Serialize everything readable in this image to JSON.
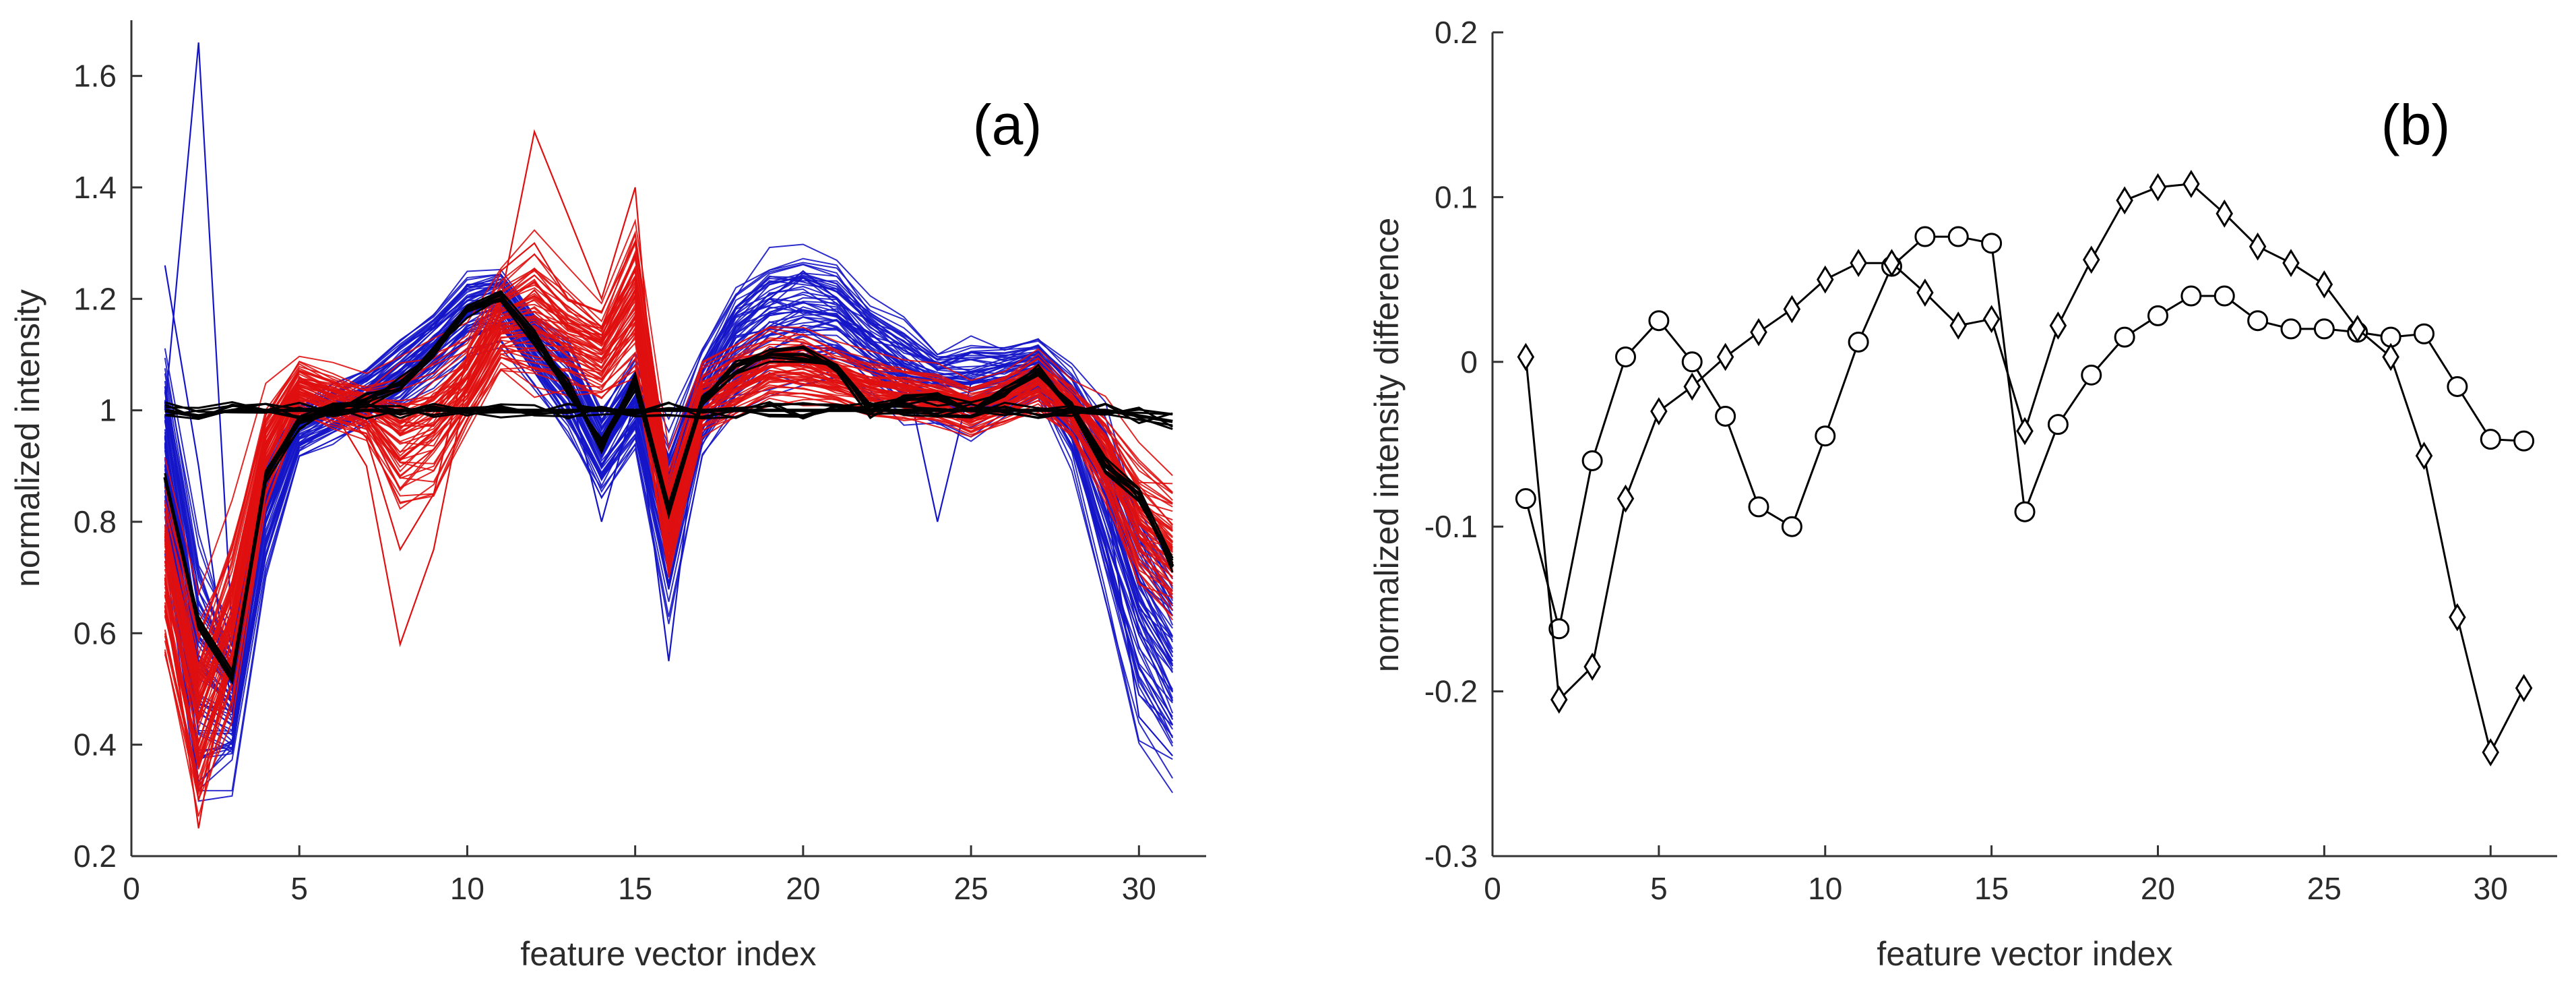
{
  "chart_data": [
    {
      "type": "line",
      "panel_label": "(a)",
      "xlabel": "feature vector index",
      "ylabel": "normalized intensity",
      "xlim": [
        0,
        32
      ],
      "ylim": [
        0.2,
        1.7
      ],
      "xticks": [
        0,
        5,
        10,
        15,
        20,
        25,
        30
      ],
      "xtick_labels": [
        "0",
        "5",
        "10",
        "15",
        "20",
        "25",
        "30"
      ],
      "yticks": [
        0.2,
        0.4,
        0.6,
        0.8,
        1.0,
        1.2,
        1.4,
        1.6
      ],
      "ytick_labels": [
        "0.2",
        "0.4",
        "0.6",
        "0.8",
        "1",
        "1.2",
        "1.4",
        "1.6"
      ],
      "x": [
        1,
        2,
        3,
        4,
        5,
        6,
        7,
        8,
        9,
        10,
        11,
        12,
        13,
        14,
        15,
        16,
        17,
        18,
        19,
        20,
        21,
        22,
        23,
        24,
        25,
        26,
        27,
        28,
        29,
        30,
        31
      ],
      "series_groups": [
        {
          "name": "blue group",
          "color": "#1515c8",
          "count": 60,
          "mean": [
            0.95,
            0.55,
            0.48,
            0.82,
            0.97,
            1.0,
            1.03,
            1.07,
            1.12,
            1.18,
            1.2,
            1.12,
            1.05,
            0.93,
            1.02,
            0.82,
            1.02,
            1.12,
            1.17,
            1.18,
            1.17,
            1.12,
            1.08,
            1.05,
            1.05,
            1.06,
            1.08,
            1.0,
            0.85,
            0.65,
            0.55
          ],
          "spread": [
            0.1,
            0.15,
            0.08,
            0.06,
            0.03,
            0.03,
            0.03,
            0.04,
            0.04,
            0.04,
            0.04,
            0.04,
            0.05,
            0.05,
            0.05,
            0.1,
            0.06,
            0.07,
            0.07,
            0.07,
            0.06,
            0.05,
            0.05,
            0.04,
            0.05,
            0.04,
            0.03,
            0.05,
            0.1,
            0.12,
            0.12
          ],
          "outliers": [
            {
              "values": [
                1.0,
                1.66,
                0.6,
                0.85,
                0.97,
                1.0,
                1.03,
                1.07,
                1.12,
                1.18,
                1.2,
                1.1,
                1.05,
                0.93,
                1.02,
                0.85,
                1.02,
                1.12,
                1.17,
                1.18,
                1.17,
                1.12,
                1.08,
                1.05,
                1.05,
                1.06,
                1.08,
                1.0,
                0.85,
                0.65,
                0.55
              ]
            },
            {
              "values": [
                1.26,
                0.9,
                0.46,
                0.82,
                0.97,
                1.0,
                1.03,
                1.07,
                1.12,
                1.18,
                1.2,
                1.12,
                1.05,
                0.8,
                1.02,
                0.55,
                1.05,
                1.15,
                1.2,
                1.25,
                1.2,
                1.12,
                1.08,
                0.8,
                1.05,
                1.06,
                1.08,
                1.0,
                0.85,
                0.45,
                0.38
              ]
            }
          ]
        },
        {
          "name": "red group",
          "color": "#e01010",
          "count": 60,
          "mean": [
            0.72,
            0.45,
            0.62,
            0.92,
            1.04,
            1.02,
            1.0,
            0.95,
            0.98,
            1.05,
            1.15,
            1.17,
            1.13,
            1.1,
            1.2,
            0.8,
            1.02,
            1.05,
            1.08,
            1.08,
            1.06,
            1.04,
            1.03,
            1.02,
            1.0,
            1.02,
            1.05,
            1.0,
            0.92,
            0.8,
            0.75
          ],
          "spread": [
            0.1,
            0.1,
            0.1,
            0.06,
            0.03,
            0.03,
            0.03,
            0.08,
            0.08,
            0.05,
            0.05,
            0.08,
            0.06,
            0.05,
            0.08,
            0.06,
            0.04,
            0.04,
            0.04,
            0.04,
            0.03,
            0.03,
            0.03,
            0.03,
            0.03,
            0.03,
            0.03,
            0.03,
            0.05,
            0.07,
            0.08
          ],
          "outliers": [
            {
              "values": [
                0.7,
                0.25,
                0.6,
                0.92,
                1.04,
                1.0,
                0.9,
                0.58,
                0.75,
                1.05,
                1.2,
                1.5,
                1.35,
                1.2,
                1.4,
                0.7,
                1.02,
                1.05,
                1.08,
                1.08,
                1.06,
                1.04,
                1.03,
                1.02,
                1.0,
                1.02,
                1.05,
                1.0,
                0.92,
                0.8,
                0.75
              ]
            },
            {
              "values": [
                0.65,
                0.3,
                0.55,
                0.9,
                1.06,
                1.02,
                0.95,
                0.75,
                0.85,
                1.1,
                1.25,
                1.3,
                1.2,
                1.15,
                1.25,
                0.75,
                1.0,
                1.05,
                1.08,
                1.08,
                1.06,
                1.04,
                1.03,
                1.02,
                1.0,
                1.02,
                1.05,
                1.0,
                0.92,
                0.8,
                0.75
              ]
            }
          ]
        }
      ],
      "mean_lines": [
        {
          "name": "mean 1",
          "color": "#000000",
          "values": [
            0.88,
            0.62,
            0.52,
            0.88,
            0.98,
            1.0,
            1.02,
            1.05,
            1.1,
            1.18,
            1.2,
            1.13,
            1.04,
            0.94,
            1.05,
            0.82,
            1.02,
            1.08,
            1.1,
            1.1,
            1.08,
            1.0,
            1.02,
            1.02,
            1.0,
            1.03,
            1.07,
            1.0,
            0.9,
            0.85,
            0.72
          ]
        },
        {
          "name": "mean 2",
          "color": "#000000",
          "values": [
            1.0,
            0.99,
            1.0,
            1.0,
            1.0,
            1.0,
            1.0,
            1.0,
            1.0,
            1.0,
            1.0,
            1.0,
            1.0,
            1.0,
            1.0,
            1.0,
            1.0,
            1.0,
            1.0,
            1.0,
            1.0,
            1.0,
            1.0,
            1.0,
            1.0,
            1.0,
            1.0,
            1.0,
            1.0,
            0.99,
            0.98
          ]
        }
      ]
    },
    {
      "type": "line",
      "panel_label": "(b)",
      "xlabel": "feature vector index",
      "ylabel": "normalized intensity difference",
      "xlim": [
        0,
        32
      ],
      "ylim": [
        -0.3,
        0.2
      ],
      "xticks": [
        0,
        5,
        10,
        15,
        20,
        25,
        30
      ],
      "xtick_labels": [
        "0",
        "5",
        "10",
        "15",
        "20",
        "25",
        "30"
      ],
      "yticks": [
        -0.3,
        -0.2,
        -0.1,
        0,
        0.1,
        0.2
      ],
      "ytick_labels": [
        "-0.3",
        "-0.2",
        "-0.1",
        "0",
        "0.1",
        "0.2"
      ],
      "x": [
        1,
        2,
        3,
        4,
        5,
        6,
        7,
        8,
        9,
        10,
        11,
        12,
        13,
        14,
        15,
        16,
        17,
        18,
        19,
        20,
        21,
        22,
        23,
        24,
        25,
        26,
        27,
        28,
        29,
        30,
        31
      ],
      "series": [
        {
          "name": "circle markers",
          "marker": "circle",
          "color": "#000000",
          "values": [
            -0.083,
            -0.162,
            -0.06,
            0.003,
            0.025,
            0.0,
            -0.033,
            -0.088,
            -0.1,
            -0.045,
            0.012,
            0.058,
            0.076,
            0.076,
            0.072,
            -0.091,
            -0.038,
            -0.008,
            0.015,
            0.028,
            0.04,
            0.04,
            0.025,
            0.02,
            0.02,
            0.018,
            0.015,
            0.017,
            -0.015,
            -0.047,
            -0.048
          ]
        },
        {
          "name": "diamond markers",
          "marker": "diamond",
          "color": "#000000",
          "values": [
            0.003,
            -0.205,
            -0.185,
            -0.083,
            -0.03,
            -0.015,
            0.003,
            0.018,
            0.032,
            0.05,
            0.06,
            0.06,
            0.042,
            0.022,
            0.026,
            -0.042,
            0.022,
            0.062,
            0.098,
            0.106,
            0.108,
            0.09,
            0.07,
            0.06,
            0.047,
            0.02,
            0.003,
            -0.057,
            -0.155,
            -0.237,
            -0.198
          ]
        }
      ]
    }
  ]
}
